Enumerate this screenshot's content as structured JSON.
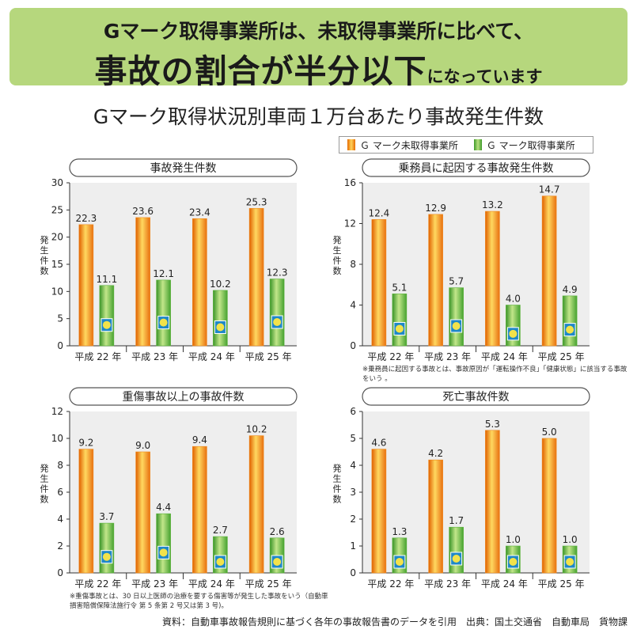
{
  "banner": {
    "line1": "Gマーク取得事業所は、未取得事業所に比べて、",
    "line2_big": "事故の割合が半分以下",
    "line2_small": "になっています"
  },
  "main_title": "Gマーク取得状況別車両１万台あたり事故発生件数",
  "legend": {
    "unacquired": "Ｇ マーク未取得事業所",
    "acquired": "Ｇ マーク取得事業所"
  },
  "colors": {
    "unacquired": "#f08a1c",
    "acquired": "#5cb33a",
    "plot_bg": "#eeeeee",
    "banner_bg": "#b6d77d"
  },
  "source": "資料：自動車事故報告規則に基づく各年の事故報告書のデータを引用　出典：国土交通省　自動車局　貨物課",
  "chart_data": [
    {
      "type": "bar",
      "title": "事故発生件数",
      "ylabel": "発生件数",
      "categories": [
        "平成 22 年",
        "平成 23 年",
        "平成 24 年",
        "平成 25 年"
      ],
      "ylim": [
        0,
        30
      ],
      "yticks": [
        0,
        5,
        10,
        15,
        20,
        25,
        30
      ],
      "series": [
        {
          "name": "Ｇ マーク未取得事業所",
          "values": [
            22.3,
            23.6,
            23.4,
            25.3
          ],
          "labels": [
            "22.3",
            "23.6",
            "23.4",
            "25.3"
          ]
        },
        {
          "name": "Ｇ マーク取得事業所",
          "values": [
            11.1,
            12.1,
            10.2,
            12.3
          ],
          "labels": [
            "11.1",
            "12.1",
            "10.2",
            "12.3"
          ]
        }
      ],
      "note": ""
    },
    {
      "type": "bar",
      "title": "乗務員に起因する事故発生件数",
      "ylabel": "発生件数",
      "categories": [
        "平成 22 年",
        "平成 23 年",
        "平成 24 年",
        "平成 25 年"
      ],
      "ylim": [
        0,
        16
      ],
      "yticks": [
        0,
        4,
        8,
        12,
        16
      ],
      "series": [
        {
          "name": "Ｇ マーク未取得事業所",
          "values": [
            12.4,
            12.9,
            13.2,
            14.7
          ],
          "labels": [
            "12.4",
            "12.9",
            "13.2",
            "14.7"
          ]
        },
        {
          "name": "Ｇ マーク取得事業所",
          "values": [
            5.1,
            5.7,
            4.0,
            4.9
          ],
          "labels": [
            "5.1",
            "5.7",
            "4.0",
            "4.9"
          ]
        }
      ],
      "note": "※乗務員に起因する事故とは、事故原因が「運転操作不良」「健康状態」に該当する事故をいう 。"
    },
    {
      "type": "bar",
      "title": "重傷事故以上の事故件数",
      "ylabel": "発生件数",
      "categories": [
        "平成 22 年",
        "平成 23 年",
        "平成 24 年",
        "平成 25 年"
      ],
      "ylim": [
        0,
        12
      ],
      "yticks": [
        0,
        2,
        4,
        6,
        8,
        10,
        12
      ],
      "series": [
        {
          "name": "Ｇ マーク未取得事業所",
          "values": [
            9.2,
            9.0,
            9.4,
            10.2
          ],
          "labels": [
            "9.2",
            "9.0",
            "9.4",
            "10.2"
          ]
        },
        {
          "name": "Ｇ マーク取得事業所",
          "values": [
            3.7,
            4.4,
            2.7,
            2.6
          ],
          "labels": [
            "3.7",
            "4.4",
            "2.7",
            "2.6"
          ]
        }
      ],
      "note": "※重傷事故とは、30 日以上医師の治療を要する傷害等が発生した事故をいう（自動車損害賠償保障法施行令 第 5 条第 2 号又は第 3 号)。"
    },
    {
      "type": "bar",
      "title": "死亡事故件数",
      "ylabel": "発生件数",
      "categories": [
        "平成 22 年",
        "平成 23 年",
        "平成 24 年",
        "平成 25 年"
      ],
      "ylim": [
        0,
        6
      ],
      "yticks": [
        0,
        1,
        2,
        3,
        4,
        5,
        6
      ],
      "series": [
        {
          "name": "Ｇ マーク未取得事業所",
          "values": [
            4.6,
            4.2,
            5.3,
            5.0
          ],
          "labels": [
            "4.6",
            "4.2",
            "5.3",
            "5.0"
          ]
        },
        {
          "name": "Ｇ マーク取得事業所",
          "values": [
            1.3,
            1.7,
            1.0,
            1.0
          ],
          "labels": [
            "1.3",
            "1.7",
            "1.0",
            "1.0"
          ]
        }
      ],
      "note": ""
    }
  ]
}
